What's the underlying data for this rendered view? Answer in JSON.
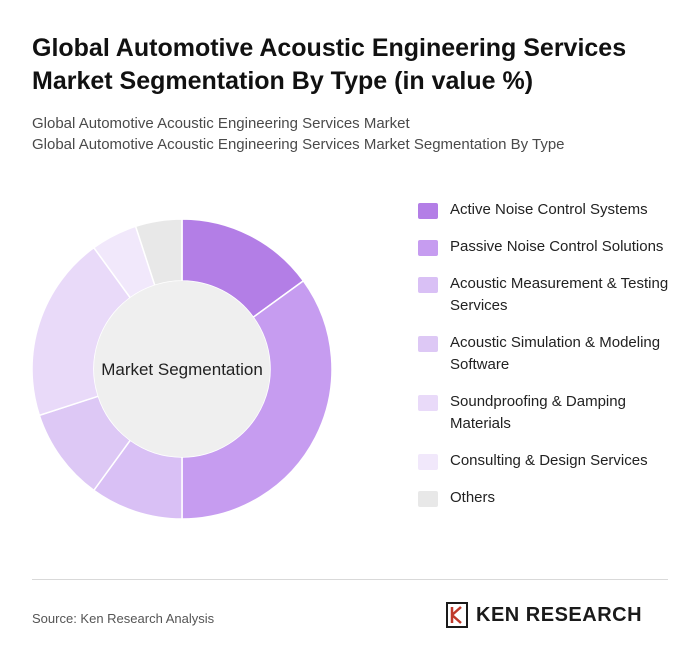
{
  "title": "Global Automotive Acoustic Engineering Services Market Segmentation By Type (in value %)",
  "subtitle_lines": [
    "Global Automotive Acoustic Engineering Services Market",
    "Global Automotive Acoustic Engineering Services Market Segmentation By Type"
  ],
  "chart_data": {
    "type": "pie",
    "variant": "donut",
    "center_label": "Market Segmentation",
    "categories": [
      "Active Noise Control Systems",
      "Passive Noise Control Solutions",
      "Acoustic Measurement & Testing Services",
      "Acoustic Simulation & Modeling Software",
      "Soundproofing & Damping Materials",
      "Consulting & Design Services",
      "Others"
    ],
    "values": [
      15,
      35,
      10,
      10,
      20,
      5,
      5
    ],
    "colors": [
      "#b37ee6",
      "#c69cf0",
      "#d9c0f5",
      "#ddc8f5",
      "#e9daf9",
      "#f1e8fb",
      "#e8e8e8"
    ],
    "legend_position": "right"
  },
  "source": "Source: Ken Research Analysis",
  "brand": {
    "logo_text": "KEN RESEARCH",
    "icon": "ken-research-logo-icon"
  }
}
